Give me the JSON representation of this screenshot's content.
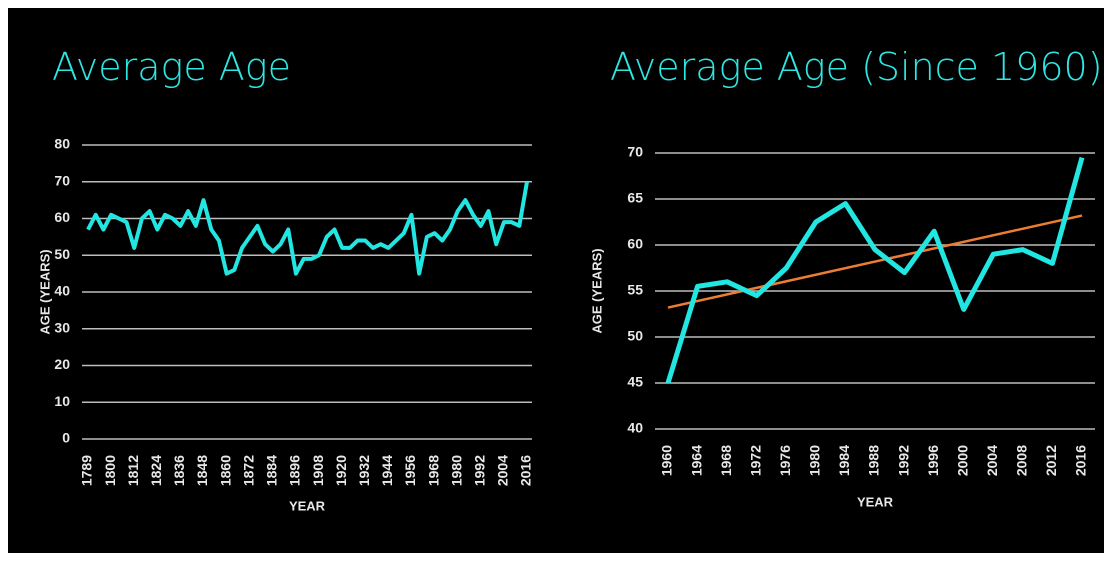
{
  "chart_data": [
    {
      "type": "line",
      "title": "Average Age",
      "y_label": "AGE (YEARS)",
      "x_label": "YEAR",
      "categories": [
        "1789",
        null,
        null,
        "1800",
        null,
        null,
        "1812",
        null,
        null,
        "1824",
        null,
        null,
        "1836",
        null,
        null,
        "1848",
        null,
        null,
        "1860",
        null,
        null,
        "1872",
        null,
        null,
        "1884",
        null,
        null,
        "1896",
        null,
        null,
        "1908",
        null,
        null,
        "1920",
        null,
        null,
        "1932",
        null,
        null,
        "1944",
        null,
        null,
        "1956",
        null,
        null,
        "1968",
        null,
        null,
        "1980",
        null,
        null,
        "1992",
        null,
        null,
        "2004",
        null,
        null,
        "2016"
      ],
      "series": [
        {
          "color": "#22e6e2",
          "values": [
            57,
            61,
            57,
            61,
            60,
            59,
            52,
            60,
            62,
            57,
            61,
            60,
            58,
            62,
            58,
            65,
            57,
            54,
            45,
            46,
            52,
            55,
            58,
            53,
            51,
            53,
            57,
            45,
            49,
            49,
            50,
            55,
            57,
            52,
            52,
            54,
            54,
            52,
            53,
            52,
            54,
            56,
            61,
            45,
            55,
            56,
            54,
            57,
            62,
            65,
            61,
            58,
            62,
            53,
            59,
            59,
            58,
            70
          ]
        }
      ],
      "ylim": [
        0,
        80
      ],
      "yticks": [
        0,
        10,
        20,
        30,
        40,
        50,
        60,
        70,
        80
      ],
      "grid": true
    },
    {
      "type": "line",
      "title": "Average Age (Since 1960)",
      "y_label": "AGE (YEARS)",
      "x_label": "YEAR",
      "categories": [
        "1960",
        "1964",
        "1968",
        "1972",
        "1976",
        "1980",
        "1984",
        "1988",
        "1992",
        "1996",
        "2000",
        "2004",
        "2008",
        "2012",
        "2016"
      ],
      "series": [
        {
          "color": "#22e6e2",
          "values": [
            45,
            55.5,
            56,
            54.5,
            57.5,
            62.5,
            64.5,
            59.5,
            57,
            61.5,
            53,
            59,
            59.5,
            58,
            69.5
          ]
        }
      ],
      "trendline": {
        "color": "#ed7d31",
        "values": [
          53.2,
          63.2
        ]
      },
      "ylim": [
        40,
        70
      ],
      "yticks": [
        40,
        45,
        50,
        55,
        60,
        65,
        70
      ],
      "grid": true
    }
  ]
}
